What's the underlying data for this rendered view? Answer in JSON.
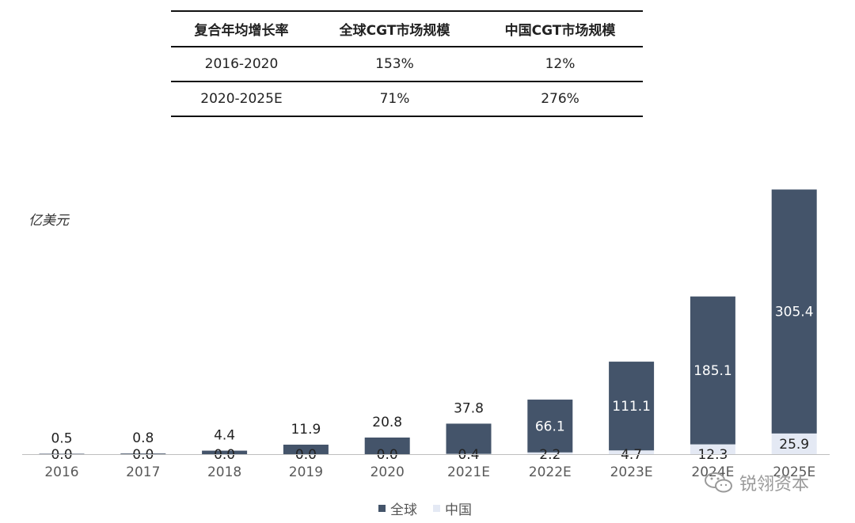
{
  "table": {
    "headers": [
      "复合年均增长率",
      "全球CGT市场规模",
      "中国CGT市场规模"
    ],
    "rows": [
      [
        "2016-2020",
        "153%",
        "12%"
      ],
      [
        "2020-2025E",
        "71%",
        "276%"
      ]
    ]
  },
  "unit": "亿美元",
  "legend": {
    "global": "全球",
    "china": "中国"
  },
  "watermark": {
    "text": "锐翎资本",
    "icon": "wechat-icon"
  },
  "colors": {
    "global": "#44546a",
    "china": "#e4e9f4",
    "axis": "#bfbfbf"
  },
  "chart_data": {
    "type": "bar",
    "categories": [
      "2016",
      "2017",
      "2018",
      "2019",
      "2020",
      "2021E",
      "2022E",
      "2023E",
      "2024E",
      "2025E"
    ],
    "series": [
      {
        "name": "全球",
        "values": [
          0.5,
          0.8,
          4.4,
          11.9,
          20.8,
          37.8,
          66.1,
          111.1,
          185.1,
          305.4
        ]
      },
      {
        "name": "中国",
        "values": [
          0.0,
          0.0,
          0.0,
          0.0,
          0.0,
          0.4,
          2.2,
          4.7,
          12.3,
          25.9
        ]
      }
    ],
    "ylabel": "亿美元",
    "ylim": [
      0,
      310
    ],
    "legend_position": "bottom-center",
    "grid": false
  }
}
